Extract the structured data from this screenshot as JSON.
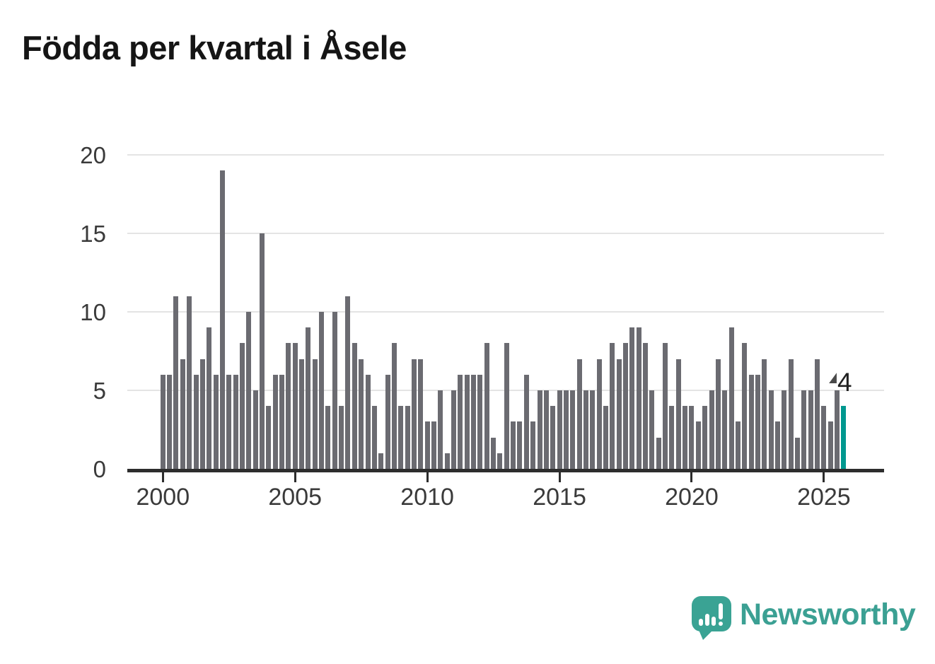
{
  "title": "Födda per kvartal i Åsele",
  "chart_data": {
    "type": "bar",
    "x_unit": "quarter",
    "x_start": "2000 Q1",
    "x_end": "2025 Q4",
    "values": [
      6,
      6,
      11,
      7,
      11,
      6,
      7,
      9,
      6,
      19,
      6,
      6,
      8,
      10,
      5,
      15,
      4,
      6,
      6,
      8,
      8,
      7,
      9,
      7,
      10,
      4,
      10,
      4,
      11,
      8,
      7,
      6,
      4,
      1,
      6,
      8,
      4,
      4,
      7,
      7,
      3,
      3,
      5,
      1,
      5,
      6,
      6,
      6,
      6,
      8,
      2,
      1,
      8,
      3,
      3,
      6,
      3,
      5,
      5,
      4,
      5,
      5,
      5,
      7,
      5,
      5,
      7,
      4,
      8,
      7,
      8,
      9,
      9,
      8,
      5,
      2,
      8,
      4,
      7,
      4,
      4,
      3,
      4,
      5,
      7,
      5,
      9,
      3,
      8,
      6,
      6,
      7,
      5,
      3,
      5,
      7,
      2,
      5,
      5,
      7,
      4,
      3,
      5,
      4
    ],
    "x_tick_labels": [
      "2000",
      "2005",
      "2010",
      "2015",
      "2020",
      "2025"
    ],
    "y_tick_labels": [
      "0",
      "5",
      "10",
      "15",
      "20"
    ],
    "y_ticks": [
      0,
      5,
      10,
      15,
      20
    ],
    "ylim": [
      0,
      20
    ],
    "grid": "horizontal",
    "legend": "none",
    "bar_color": "#6b6b71",
    "highlight_color": "#00988f",
    "highlight_index": 103,
    "annotation": {
      "text": "4",
      "target_index": 103
    }
  },
  "branding": {
    "logo_text": "Newsworthy",
    "logo_text_color": "#3ba093",
    "logo_icon_color": "#3aa394"
  }
}
